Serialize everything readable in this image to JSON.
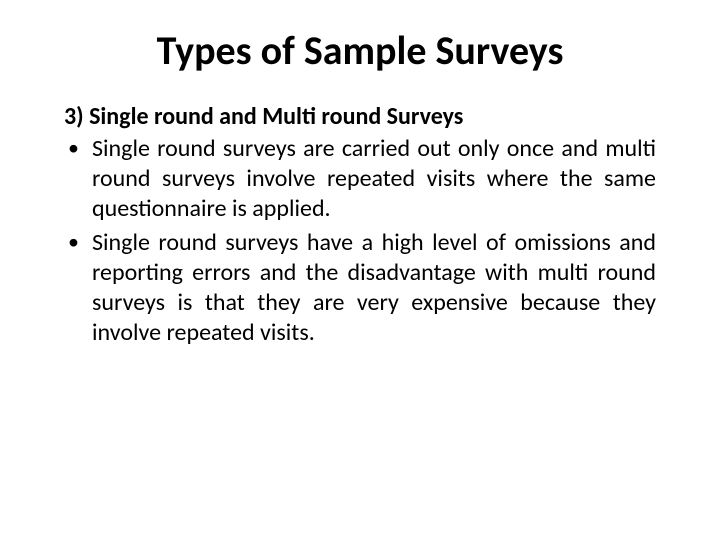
{
  "title": "Types of Sample Surveys",
  "subheading": "3) Single round and Multi round Surveys",
  "bullets": [
    "Single round surveys are carried out only once and multi round surveys involve repeated visits where the same questionnaire is applied.",
    "Single round surveys have a high level of omissions and reporting errors and the disadvantage with multi round surveys is that they are very expensive because they involve repeated visits."
  ]
}
